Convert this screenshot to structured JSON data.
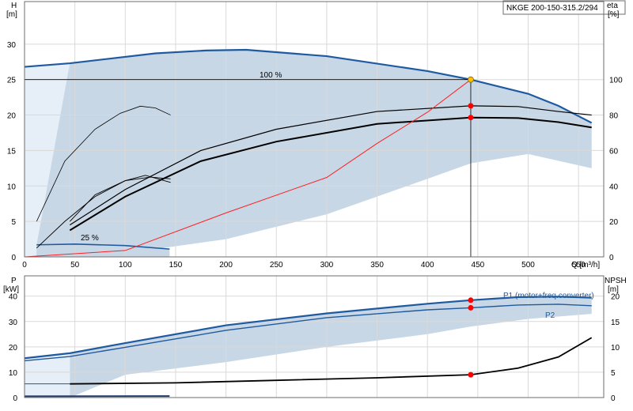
{
  "chart_data": [
    {
      "type": "line",
      "name": "head-efficiency",
      "title": "NKGE 200-150-315.2/294",
      "xlabel": "Q [m³/h]",
      "xlim": [
        0,
        575
      ],
      "xticks": [
        0,
        50,
        100,
        150,
        200,
        250,
        300,
        350,
        400,
        450,
        500,
        550
      ],
      "y_left": {
        "label_top": "H",
        "label_unit": "[m]",
        "lim": [
          0,
          36
        ],
        "ticks": [
          0,
          5,
          10,
          15,
          20,
          25,
          30
        ]
      },
      "y_right": {
        "label_top": "eta",
        "label_unit": "[%]",
        "lim": [
          0,
          144
        ],
        "ticks": [
          0,
          20,
          40,
          60,
          80,
          100
        ]
      },
      "grid": true,
      "annotations": [
        "100 %",
        "25 %"
      ],
      "colors": {
        "band": "#c8d7e6",
        "band_light": "#e6eef7",
        "curve_blue": "#1f5aa0",
        "system": "#ff2020",
        "grid": "#d9d9d9",
        "marker": "#ff0000",
        "duty": "#ffc000"
      },
      "series": [
        {
          "role": "h100",
          "x": [
            0,
            45,
            130,
            180,
            220,
            300,
            400,
            443,
            500,
            530,
            563
          ],
          "y": [
            26.8,
            27.3,
            28.7,
            29.1,
            29.2,
            28.3,
            26.2,
            25.0,
            23.0,
            21.3,
            18.9
          ]
        },
        {
          "role": "h25",
          "x": [
            12,
            50,
            100,
            144
          ],
          "y": [
            1.7,
            1.8,
            1.6,
            1.1
          ]
        },
        {
          "role": "band_lower",
          "x": [
            45,
            100,
            200,
            300,
            400,
            443,
            500,
            563
          ],
          "y": [
            0,
            0.5,
            2.5,
            6.0,
            11.0,
            13.2,
            14.5,
            12.5
          ]
        },
        {
          "role": "band_upper_left",
          "x": [
            12,
            45
          ],
          "y": [
            1.7,
            27.3
          ]
        },
        {
          "role": "eta_full",
          "x": [
            45,
            100,
            175,
            250,
            350,
            443,
            490,
            530,
            563
          ],
          "y": [
            18,
            38,
            60,
            72,
            82,
            85.2,
            84.8,
            82,
            80
          ]
        },
        {
          "role": "eta_p",
          "x": [
            45,
            100,
            175,
            250,
            350,
            443,
            490,
            530,
            563
          ],
          "y": [
            15,
            34,
            54,
            65,
            75,
            78.6,
            78.3,
            76,
            73
          ]
        },
        {
          "role": "h_small_eta",
          "x": [
            12,
            40,
            70,
            95,
            115,
            130,
            145
          ],
          "y": [
            20,
            54,
            72,
            81,
            85,
            84,
            80
          ]
        },
        {
          "role": "eta_low_a",
          "x": [
            12,
            40,
            70,
            100,
            120,
            145
          ],
          "y": [
            5,
            20,
            34,
            43,
            46,
            42
          ]
        },
        {
          "role": "eta_low_b",
          "x": [
            45,
            70,
            100,
            125,
            145
          ],
          "y": [
            20,
            35,
            43,
            45,
            44
          ]
        },
        {
          "role": "system",
          "x": [
            0,
            100,
            200,
            300,
            350,
            400,
            443
          ],
          "y": [
            0,
            0.9,
            6.2,
            11.2,
            16.0,
            20.4,
            25.0
          ]
        }
      ],
      "points": [
        {
          "role": "duty",
          "x": 443,
          "y": 25.0,
          "axis": "H"
        },
        {
          "role": "eta1",
          "x": 443,
          "y": 85.2,
          "axis": "eta"
        },
        {
          "role": "eta2",
          "x": 443,
          "y": 78.6,
          "axis": "eta"
        }
      ]
    },
    {
      "type": "line",
      "name": "power-npsh",
      "xlim": [
        0,
        575
      ],
      "xticks": [
        0,
        50,
        100,
        150,
        200,
        250,
        300,
        350,
        400,
        450,
        500,
        550
      ],
      "y_left": {
        "label_top": "P",
        "label_unit": "[kW]",
        "lim": [
          0,
          48
        ],
        "ticks": [
          0,
          10,
          20,
          30,
          40
        ]
      },
      "y_right": {
        "label_top": "NPSH",
        "label_unit": "[m]",
        "lim": [
          0,
          24
        ],
        "ticks": [
          0,
          5,
          10,
          15,
          20
        ]
      },
      "grid": true,
      "series": [
        {
          "name": "P1 (motor+freq.converter)",
          "x": [
            0,
            45,
            100,
            200,
            300,
            400,
            443,
            490,
            530,
            563
          ],
          "y": [
            15.5,
            17.5,
            21.5,
            28.5,
            33.2,
            37.0,
            38.4,
            39.6,
            39.8,
            39.4
          ]
        },
        {
          "name": "P2",
          "x": [
            0,
            45,
            100,
            200,
            300,
            400,
            443,
            490,
            530,
            563
          ],
          "y": [
            14.5,
            16.2,
            19.8,
            26.5,
            31.5,
            34.6,
            35.4,
            36.5,
            36.8,
            36.2
          ]
        },
        {
          "role": "npsh",
          "x": [
            45,
            150,
            250,
            350,
            443,
            490,
            530,
            563
          ],
          "y": [
            2.7,
            2.9,
            3.4,
            3.9,
            4.5,
            5.8,
            8.0,
            11.8
          ]
        },
        {
          "role": "band_lower",
          "x": [
            45,
            100,
            200,
            300,
            400,
            443,
            500,
            563
          ],
          "y": [
            0,
            9,
            14,
            20,
            25,
            28,
            31,
            33
          ]
        }
      ],
      "points": [
        {
          "role": "p1",
          "x": 443,
          "y": 38.4,
          "axis": "P"
        },
        {
          "role": "p2",
          "x": 443,
          "y": 35.4,
          "axis": "P"
        },
        {
          "role": "npsh",
          "x": 443,
          "y": 4.5,
          "axis": "NPSH"
        }
      ]
    }
  ]
}
